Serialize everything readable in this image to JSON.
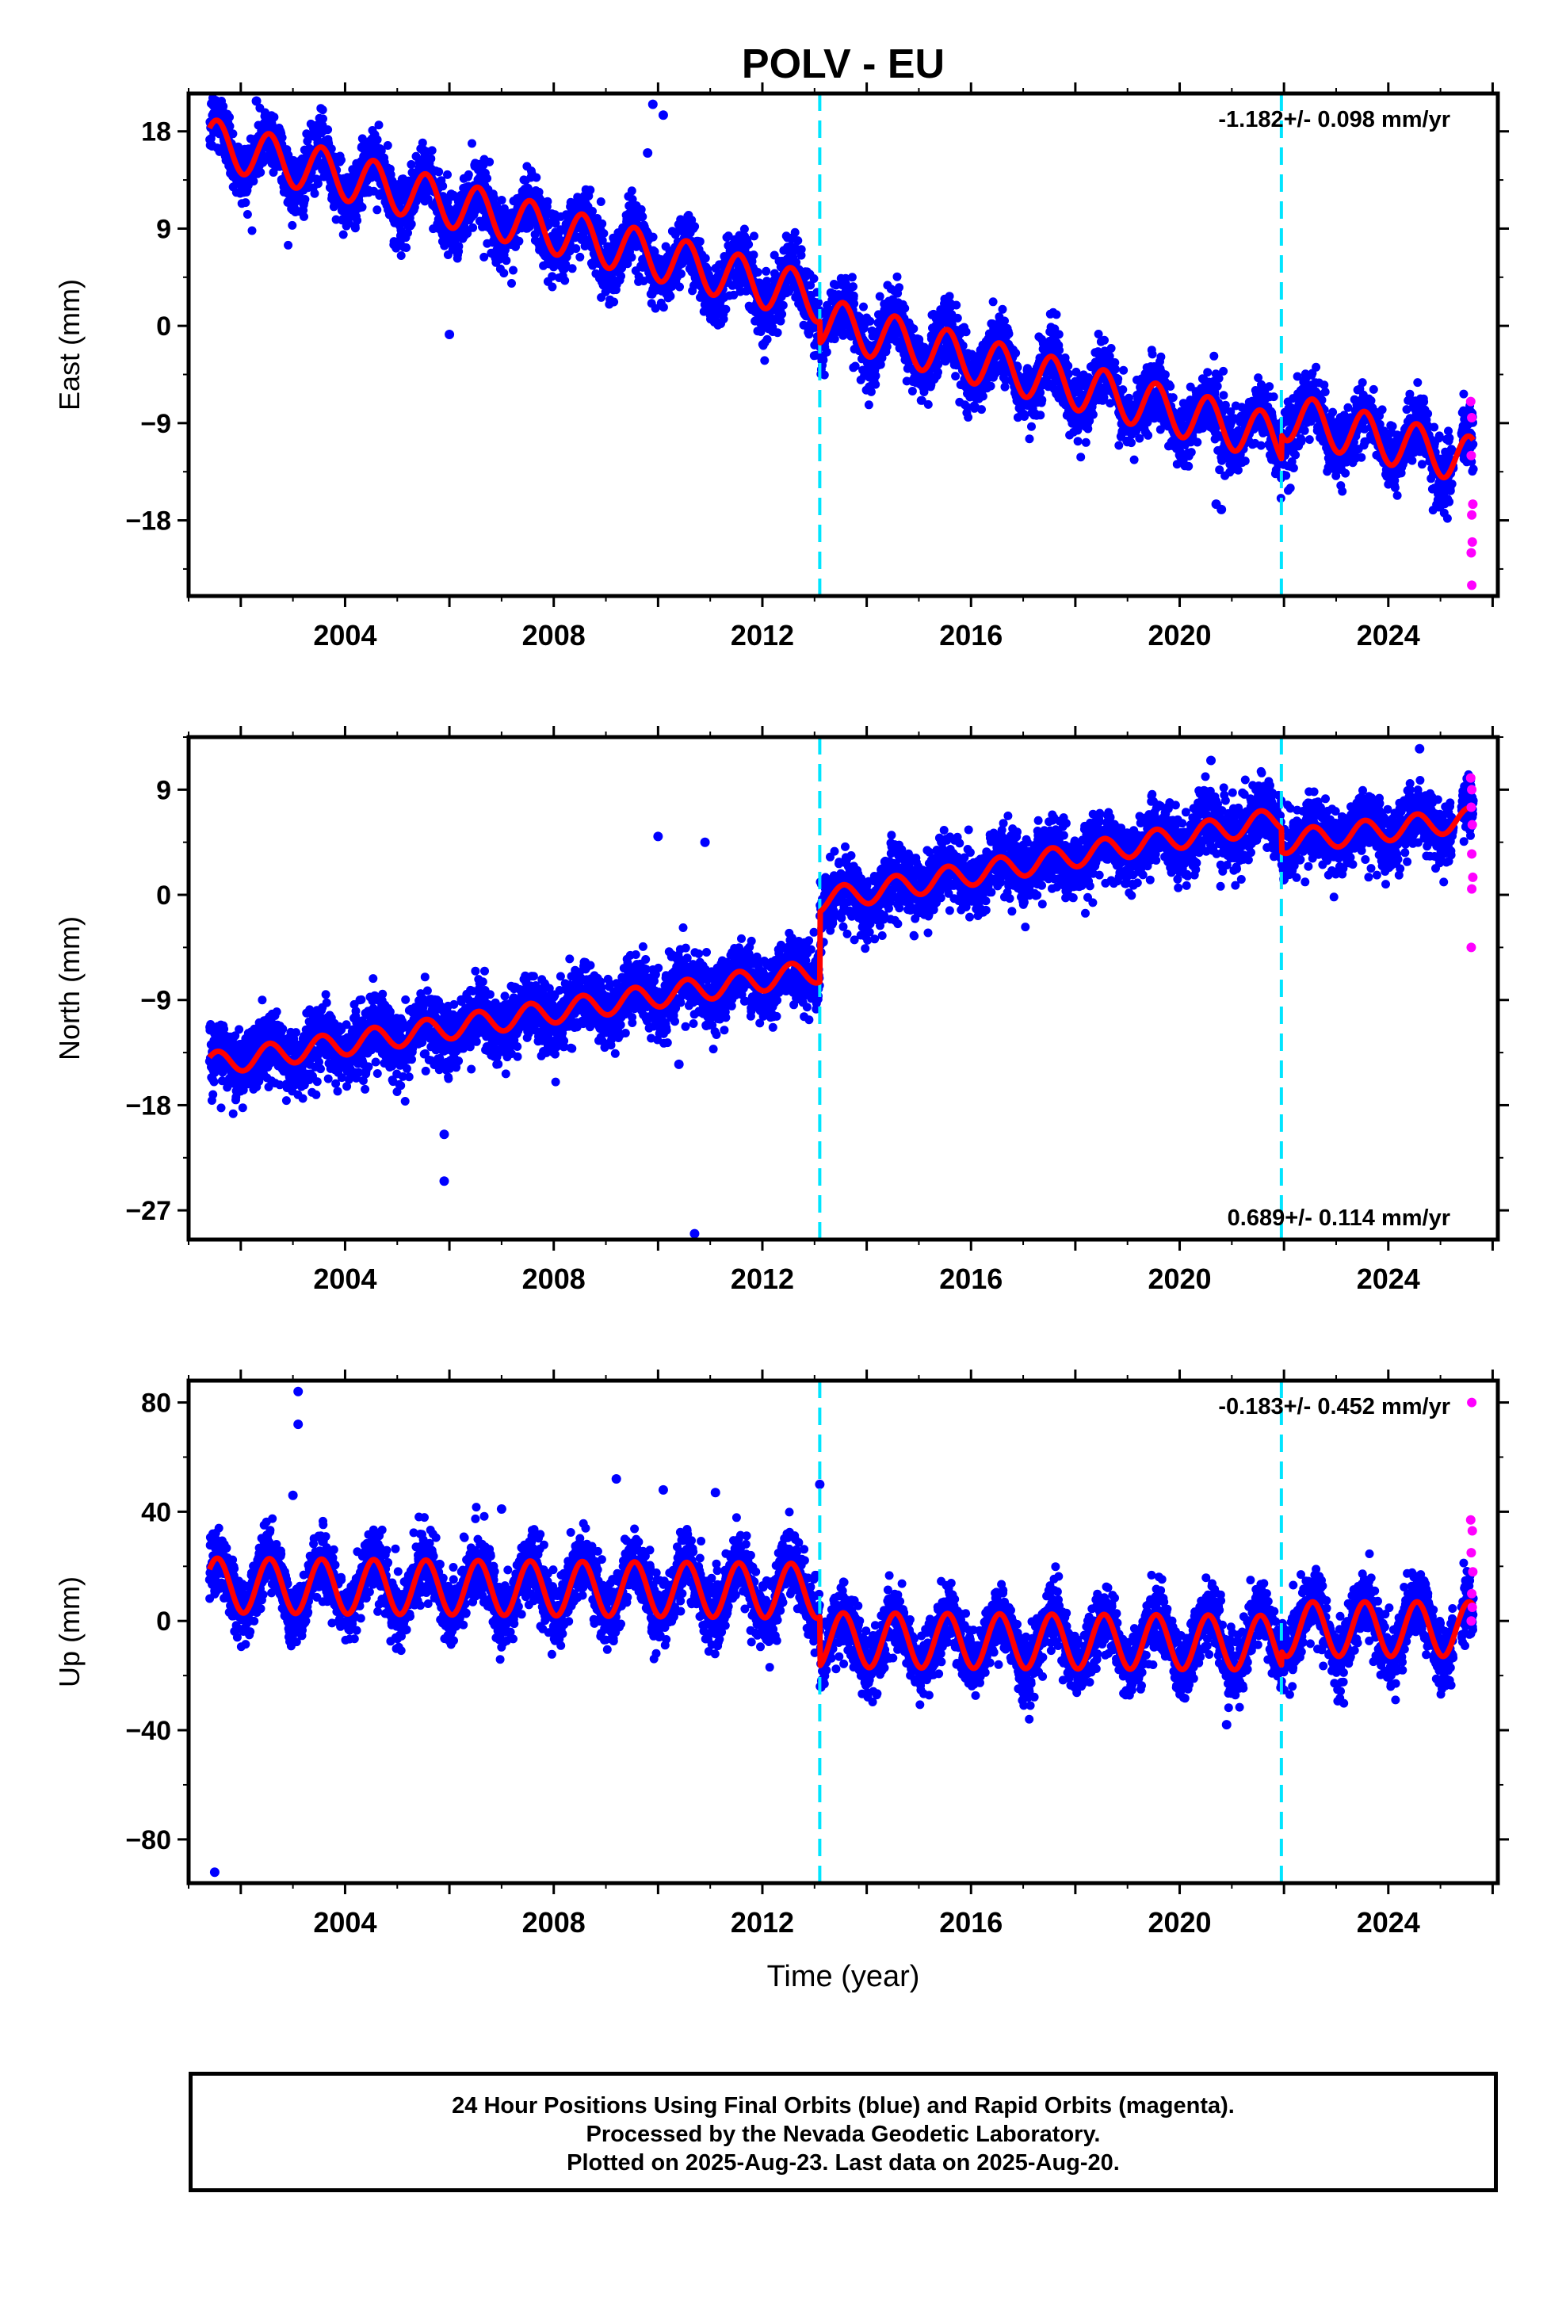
{
  "chart_data": {
    "type": "scatter",
    "title": "POLV - EU",
    "xlabel": "Time (year)",
    "xlim": [
      2001.0,
      2026.1
    ],
    "xticks": [
      2004,
      2008,
      2012,
      2016,
      2020,
      2024
    ],
    "breaks": [
      2013.1,
      2021.95
    ],
    "colors": {
      "final": "#0000ff",
      "rapid": "#ff00ff",
      "model": "#ff0000",
      "break": "#00e5ff"
    },
    "data_start": 2001.4,
    "data_end": 2025.63,
    "rapid_start": 2025.55,
    "panels": [
      {
        "key": "east",
        "ylabel": "East (mm)",
        "ylim": [
          -25,
          21.5
        ],
        "yticks": [
          -18,
          -9,
          0,
          9,
          18
        ],
        "ytick_labels": [
          "−18",
          "−9",
          "0",
          "9",
          "18"
        ],
        "rate": "-1.182+/- 0.098 mm/yr",
        "rate_position": "top-right",
        "trend": [
          [
            2001.4,
            17.0
          ],
          [
            2013.1,
            2.5
          ],
          [
            2013.1,
            0.5
          ],
          [
            2021.95,
            -10.5
          ],
          [
            2021.95,
            -8.3
          ],
          [
            2025.63,
            -12.5
          ]
        ],
        "seasonal_amplitude": 2.2,
        "scatter": 1.5,
        "outliers": [
          [
            2002.3,
            20.8
          ],
          [
            2006.0,
            -0.8
          ],
          [
            2009.9,
            20.5
          ],
          [
            2010.1,
            19.5
          ],
          [
            2009.8,
            16.0
          ],
          [
            2012.2,
            -0.5
          ],
          [
            2020.7,
            -16.5
          ],
          [
            2020.8,
            -17.0
          ]
        ],
        "rapid_points": [
          [
            2025.58,
            -7.0
          ],
          [
            2025.6,
            -8.5
          ],
          [
            2025.59,
            -12.0
          ],
          [
            2025.62,
            -16.5
          ],
          [
            2025.6,
            -17.5
          ],
          [
            2025.61,
            -20.0
          ],
          [
            2025.59,
            -21.0
          ],
          [
            2025.6,
            -24.0
          ]
        ]
      },
      {
        "key": "north",
        "ylabel": "North (mm)",
        "ylim": [
          -29.5,
          13.5
        ],
        "yticks": [
          -27,
          -18,
          -9,
          0,
          9
        ],
        "ytick_labels": [
          "−27",
          "−18",
          "−9",
          "0",
          "9"
        ],
        "rate": "0.689+/- 0.114 mm/yr",
        "rate_position": "bottom-right",
        "trend": [
          [
            2001.4,
            -14.5
          ],
          [
            2013.1,
            -6.5
          ],
          [
            2013.1,
            -0.5
          ],
          [
            2021.95,
            6.5
          ],
          [
            2021.95,
            4.5
          ],
          [
            2025.63,
            6.5
          ]
        ],
        "seasonal_amplitude": 1.0,
        "scatter": 1.4,
        "outliers": [
          [
            2005.9,
            -20.5
          ],
          [
            2005.9,
            -24.5
          ],
          [
            2010.0,
            5.0
          ],
          [
            2010.9,
            4.5
          ],
          [
            2010.7,
            -29.0
          ],
          [
            2010.4,
            -14.5
          ],
          [
            2024.6,
            12.5
          ],
          [
            2020.6,
            11.5
          ]
        ],
        "rapid_points": [
          [
            2025.58,
            10.0
          ],
          [
            2025.6,
            9.0
          ],
          [
            2025.59,
            7.5
          ],
          [
            2025.61,
            6.0
          ],
          [
            2025.6,
            3.5
          ],
          [
            2025.62,
            1.5
          ],
          [
            2025.6,
            0.5
          ],
          [
            2025.59,
            -4.5
          ]
        ]
      },
      {
        "key": "up",
        "ylabel": "Up (mm)",
        "ylim": [
          -96,
          88
        ],
        "yticks": [
          -80,
          -40,
          0,
          40,
          80
        ],
        "ytick_labels": [
          "−80",
          "−40",
          "0",
          "40",
          "80"
        ],
        "rate": "-0.183+/- 0.452 mm/yr",
        "rate_position": "top-right",
        "trend": [
          [
            2001.4,
            13.0
          ],
          [
            2013.1,
            11.0
          ],
          [
            2013.1,
            -7.0
          ],
          [
            2021.95,
            -8.0
          ],
          [
            2021.95,
            -3.0
          ],
          [
            2025.63,
            -3.0
          ]
        ],
        "seasonal_amplitude": 10.0,
        "scatter": 6.0,
        "outliers": [
          [
            2003.1,
            84.0
          ],
          [
            2003.1,
            72.0
          ],
          [
            2003.0,
            46.0
          ],
          [
            2001.5,
            -92.0
          ],
          [
            2007.0,
            41.0
          ],
          [
            2009.2,
            52.0
          ],
          [
            2010.1,
            48.0
          ],
          [
            2011.1,
            47.0
          ],
          [
            2013.1,
            50.0
          ],
          [
            2020.9,
            -38.0
          ]
        ],
        "rapid_points": [
          [
            2025.6,
            80.0
          ],
          [
            2025.58,
            37.0
          ],
          [
            2025.61,
            33.0
          ],
          [
            2025.59,
            25.0
          ],
          [
            2025.62,
            18.0
          ],
          [
            2025.6,
            10.0
          ],
          [
            2025.61,
            5.0
          ],
          [
            2025.59,
            0.0
          ]
        ]
      }
    ]
  },
  "footer": {
    "line1": "24 Hour Positions Using Final Orbits (blue) and Rapid Orbits (magenta).",
    "line2": "Processed by the Nevada Geodetic Laboratory.",
    "line3": "Plotted on 2025-Aug-23. Last data on 2025-Aug-20."
  }
}
